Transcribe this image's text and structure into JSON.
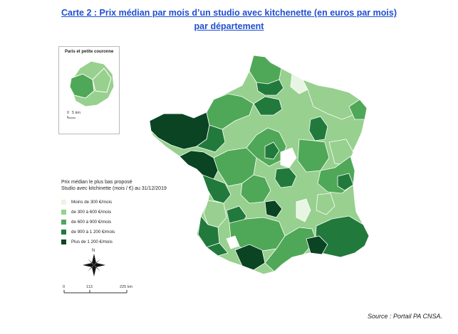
{
  "title_line1": "Carte 2 : Prix médian par mois d’un studio avec kitchenette (en euros par mois)",
  "title_line2": "par département",
  "inset": {
    "title": "Paris et petite couronne",
    "scale_label": "5 km",
    "scale_zero": "0"
  },
  "legend": {
    "title_line1": "Prix médian le plus bas proposé",
    "title_line2": "Studio avec kitchinette (mois / €) au 31/12/2019",
    "classes": [
      {
        "label": "Moins de 300 €/mois",
        "color": "#e8f5e2"
      },
      {
        "label": "de 300 à 600 €/mois",
        "color": "#98d08f"
      },
      {
        "label": "de 600 à 900 €/mois",
        "color": "#4fa857"
      },
      {
        "label": "de 900 à 1 200 €/mois",
        "color": "#217a3c"
      },
      {
        "label": "Plus de 1 200 €/mois",
        "color": "#0a4423"
      }
    ]
  },
  "north_label": "N",
  "scale": {
    "labels": [
      "0",
      "113",
      "225 km"
    ]
  },
  "source": "Source : Portail PA CNSA."
}
